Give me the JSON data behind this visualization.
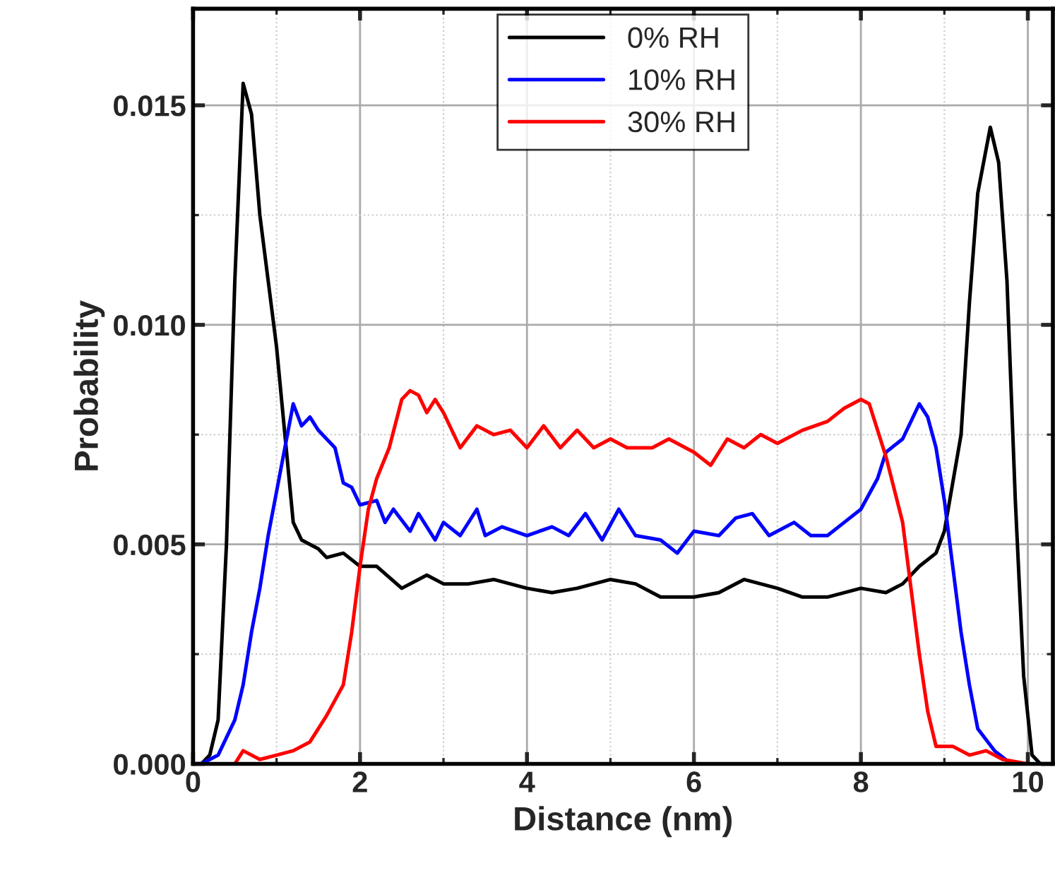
{
  "chart_data": {
    "type": "line",
    "xlabel": "Distance (nm)",
    "ylabel": "Probability",
    "xlim": [
      0,
      10.3
    ],
    "ylim": [
      0,
      0.0172
    ],
    "xticks": [
      0,
      2,
      4,
      6,
      8,
      10
    ],
    "yticks": [
      {
        "value": 0,
        "label": "0.000"
      },
      {
        "value": 0.005,
        "label": "0.005"
      },
      {
        "value": 0.01,
        "label": "0.010"
      },
      {
        "value": 0.015,
        "label": "0.015"
      }
    ],
    "grid": true,
    "legend": "top",
    "line_style": "solid",
    "marker": "none",
    "series": [
      {
        "name": "0% RH",
        "color": "#000000",
        "x": [
          0.1,
          0.2,
          0.3,
          0.4,
          0.5,
          0.6,
          0.7,
          0.8,
          0.9,
          1.0,
          1.1,
          1.2,
          1.3,
          1.5,
          1.6,
          1.8,
          2.0,
          2.2,
          2.5,
          2.8,
          3.0,
          3.3,
          3.6,
          4.0,
          4.3,
          4.6,
          5.0,
          5.3,
          5.6,
          6.0,
          6.3,
          6.6,
          7.0,
          7.3,
          7.6,
          8.0,
          8.3,
          8.5,
          8.7,
          8.9,
          9.0,
          9.2,
          9.3,
          9.4,
          9.55,
          9.65,
          9.75,
          9.85,
          9.95,
          10.05,
          10.15
        ],
        "values": [
          0,
          0.0002,
          0.001,
          0.005,
          0.011,
          0.0155,
          0.0148,
          0.0125,
          0.011,
          0.0095,
          0.0075,
          0.0055,
          0.0051,
          0.0049,
          0.0047,
          0.0048,
          0.0045,
          0.0045,
          0.004,
          0.0043,
          0.0041,
          0.0041,
          0.0042,
          0.004,
          0.0039,
          0.004,
          0.0042,
          0.0041,
          0.0038,
          0.0038,
          0.0039,
          0.0042,
          0.004,
          0.0038,
          0.0038,
          0.004,
          0.0039,
          0.0041,
          0.0045,
          0.0048,
          0.0053,
          0.0075,
          0.0105,
          0.013,
          0.0145,
          0.0137,
          0.011,
          0.006,
          0.002,
          0.0002,
          0
        ]
      },
      {
        "name": "10% RH",
        "color": "#0000ff",
        "x": [
          0.1,
          0.3,
          0.5,
          0.6,
          0.7,
          0.8,
          0.9,
          1.0,
          1.1,
          1.2,
          1.3,
          1.4,
          1.5,
          1.7,
          1.8,
          1.9,
          2.0,
          2.2,
          2.3,
          2.4,
          2.6,
          2.7,
          2.9,
          3.0,
          3.2,
          3.4,
          3.5,
          3.7,
          4.0,
          4.3,
          4.5,
          4.7,
          4.9,
          5.1,
          5.3,
          5.6,
          5.8,
          6.0,
          6.3,
          6.5,
          6.7,
          6.9,
          7.2,
          7.4,
          7.6,
          7.8,
          8.0,
          8.2,
          8.3,
          8.5,
          8.7,
          8.8,
          8.9,
          9.0,
          9.1,
          9.2,
          9.3,
          9.4,
          9.6,
          9.8
        ],
        "values": [
          0,
          0.0002,
          0.001,
          0.0018,
          0.003,
          0.004,
          0.0052,
          0.0062,
          0.0072,
          0.0082,
          0.0077,
          0.0079,
          0.0076,
          0.0072,
          0.0064,
          0.0063,
          0.0059,
          0.006,
          0.0055,
          0.0058,
          0.0053,
          0.0057,
          0.0051,
          0.0055,
          0.0052,
          0.0058,
          0.0052,
          0.0054,
          0.0052,
          0.0054,
          0.0052,
          0.0057,
          0.0051,
          0.0058,
          0.0052,
          0.0051,
          0.0048,
          0.0053,
          0.0052,
          0.0056,
          0.0057,
          0.0052,
          0.0055,
          0.0052,
          0.0052,
          0.0055,
          0.0058,
          0.0065,
          0.0071,
          0.0074,
          0.0082,
          0.0079,
          0.0072,
          0.006,
          0.0045,
          0.003,
          0.0018,
          0.0008,
          0.0003,
          0
        ]
      },
      {
        "name": "30% RH",
        "color": "#ff0000",
        "x": [
          0.5,
          0.6,
          0.8,
          1.0,
          1.2,
          1.4,
          1.6,
          1.8,
          1.9,
          2.0,
          2.1,
          2.2,
          2.35,
          2.5,
          2.6,
          2.7,
          2.8,
          2.9,
          3.0,
          3.2,
          3.4,
          3.6,
          3.8,
          4.0,
          4.2,
          4.4,
          4.6,
          4.8,
          5.0,
          5.2,
          5.5,
          5.7,
          6.0,
          6.2,
          6.4,
          6.6,
          6.8,
          7.0,
          7.3,
          7.6,
          7.8,
          8.0,
          8.1,
          8.3,
          8.5,
          8.6,
          8.7,
          8.8,
          8.9,
          9.1,
          9.3,
          9.5,
          9.7,
          10.0
        ],
        "values": [
          0,
          0.0003,
          0.0001,
          0.0002,
          0.0003,
          0.0005,
          0.0011,
          0.0018,
          0.003,
          0.0045,
          0.0058,
          0.0065,
          0.0072,
          0.0083,
          0.0085,
          0.0084,
          0.008,
          0.0083,
          0.008,
          0.0072,
          0.0077,
          0.0075,
          0.0076,
          0.0072,
          0.0077,
          0.0072,
          0.0076,
          0.0072,
          0.0074,
          0.0072,
          0.0072,
          0.0074,
          0.0071,
          0.0068,
          0.0074,
          0.0072,
          0.0075,
          0.0073,
          0.0076,
          0.0078,
          0.0081,
          0.0083,
          0.0082,
          0.007,
          0.0055,
          0.004,
          0.0025,
          0.0012,
          0.0004,
          0.0004,
          0.0002,
          0.0003,
          0.0001,
          0
        ]
      }
    ]
  }
}
